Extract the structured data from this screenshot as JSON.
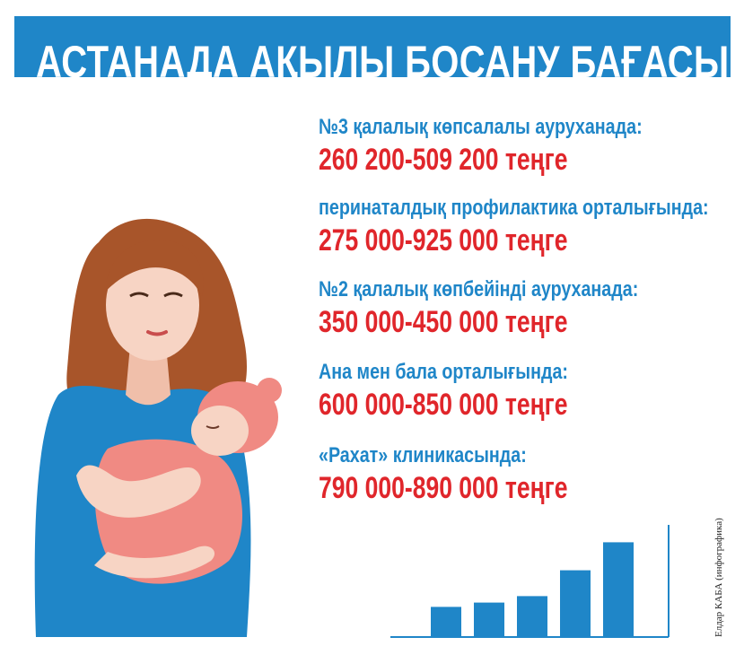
{
  "header": {
    "title": "АСТАНАДА АҚЫЛЫ БОСАНУ БАҒАСЫ:"
  },
  "entries": [
    {
      "label": "№3 қалалық көпсалалы ауруханада:",
      "price": "260 200-509 200 теңге"
    },
    {
      "label": "перинаталдық профилактика орталығында:",
      "price": "275 000-925 000 теңге"
    },
    {
      "label": "№2 қалалық көпбейінді ауруханада:",
      "price": "350 000-450 000 теңге"
    },
    {
      "label": "Ана мен бала орталығында:",
      "price": "600 000-850 000 теңге"
    },
    {
      "label": "«Рахат» клиникасында:",
      "price": "790 000-890 000 теңге"
    }
  ],
  "credit": "Елдар КАБА (инфографика)",
  "decor_bars": [
    0.28,
    0.32,
    0.38,
    0.62,
    0.88
  ],
  "colors": {
    "accent_blue": "#1f86c8",
    "price_red": "#e0262b",
    "hair": "#a8552a",
    "skin": "#f7d4c4",
    "shirt": "#1f86c8",
    "baby_blanket": "#f08a83"
  }
}
